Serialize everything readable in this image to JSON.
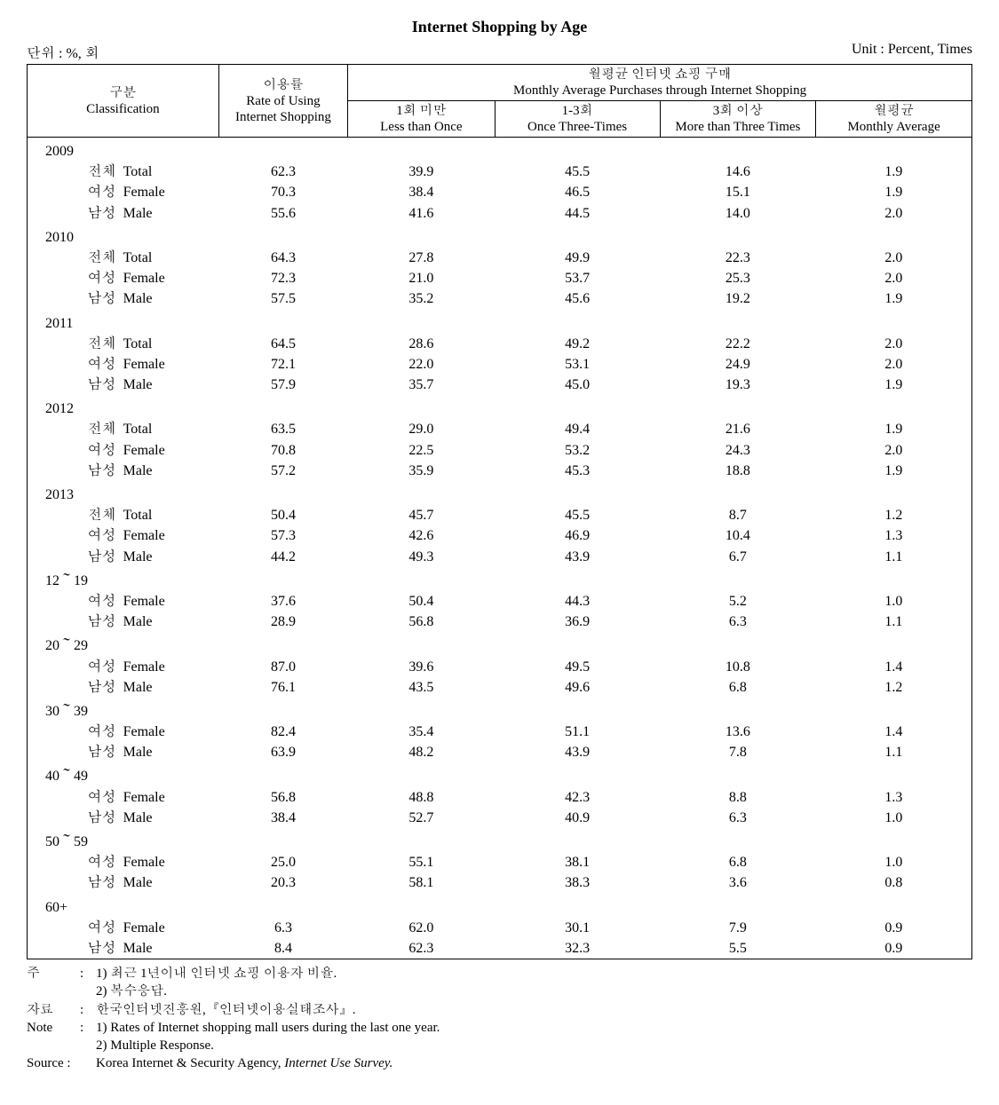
{
  "title": "Internet Shopping by Age",
  "unit_left": "단위 : %, 회",
  "unit_right": "Unit : Percent, Times",
  "header": {
    "classification_ko": "구분",
    "classification_en": "Classification",
    "rate_ko": "이용률",
    "rate_en": "Rate of Using Internet Shopping",
    "monthly_ko": "월평균 인터넷 쇼핑 구매",
    "monthly_en": "Monthly Average Purchases through Internet Shopping",
    "m1_ko": "1회 미만",
    "m1_en": "Less than Once",
    "m2_ko": "1-3회",
    "m2_en": "Once Three-Times",
    "m3_ko": "3회 이상",
    "m3_en": "More than Three Times",
    "m4_ko": "월평균",
    "m4_en": "Monthly Average"
  },
  "groups": [
    {
      "year": "2009",
      "rows": [
        {
          "ko": "전체",
          "en": "Total",
          "rate": "62.3",
          "m1": "39.9",
          "m2": "45.5",
          "m3": "14.6",
          "m4": "1.9"
        },
        {
          "ko": "여성",
          "en": "Female",
          "rate": "70.3",
          "m1": "38.4",
          "m2": "46.5",
          "m3": "15.1",
          "m4": "1.9"
        },
        {
          "ko": "남성",
          "en": "Male",
          "rate": "55.6",
          "m1": "41.6",
          "m2": "44.5",
          "m3": "14.0",
          "m4": "2.0"
        }
      ]
    },
    {
      "year": "2010",
      "rows": [
        {
          "ko": "전체",
          "en": "Total",
          "rate": "64.3",
          "m1": "27.8",
          "m2": "49.9",
          "m3": "22.3",
          "m4": "2.0"
        },
        {
          "ko": "여성",
          "en": "Female",
          "rate": "72.3",
          "m1": "21.0",
          "m2": "53.7",
          "m3": "25.3",
          "m4": "2.0"
        },
        {
          "ko": "남성",
          "en": "Male",
          "rate": "57.5",
          "m1": "35.2",
          "m2": "45.6",
          "m3": "19.2",
          "m4": "1.9"
        }
      ]
    },
    {
      "year": "2011",
      "rows": [
        {
          "ko": "전체",
          "en": "Total",
          "rate": "64.5",
          "m1": "28.6",
          "m2": "49.2",
          "m3": "22.2",
          "m4": "2.0"
        },
        {
          "ko": "여성",
          "en": "Female",
          "rate": "72.1",
          "m1": "22.0",
          "m2": "53.1",
          "m3": "24.9",
          "m4": "2.0"
        },
        {
          "ko": "남성",
          "en": "Male",
          "rate": "57.9",
          "m1": "35.7",
          "m2": "45.0",
          "m3": "19.3",
          "m4": "1.9"
        }
      ]
    },
    {
      "year": "2012",
      "rows": [
        {
          "ko": "전체",
          "en": "Total",
          "rate": "63.5",
          "m1": "29.0",
          "m2": "49.4",
          "m3": "21.6",
          "m4": "1.9"
        },
        {
          "ko": "여성",
          "en": "Female",
          "rate": "70.8",
          "m1": "22.5",
          "m2": "53.2",
          "m3": "24.3",
          "m4": "2.0"
        },
        {
          "ko": "남성",
          "en": "Male",
          "rate": "57.2",
          "m1": "35.9",
          "m2": "45.3",
          "m3": "18.8",
          "m4": "1.9"
        }
      ]
    },
    {
      "year": "2013",
      "rows": [
        {
          "ko": "전체",
          "en": "Total",
          "rate": "50.4",
          "m1": "45.7",
          "m2": "45.5",
          "m3": "8.7",
          "m4": "1.2"
        },
        {
          "ko": "여성",
          "en": "Female",
          "rate": "57.3",
          "m1": "42.6",
          "m2": "46.9",
          "m3": "10.4",
          "m4": "1.3"
        },
        {
          "ko": "남성",
          "en": "Male",
          "rate": "44.2",
          "m1": "49.3",
          "m2": "43.9",
          "m3": "6.7",
          "m4": "1.1"
        }
      ]
    },
    {
      "year": "12～19",
      "rows": [
        {
          "ko": "여성",
          "en": "Female",
          "rate": "37.6",
          "m1": "50.4",
          "m2": "44.3",
          "m3": "5.2",
          "m4": "1.0"
        },
        {
          "ko": "남성",
          "en": "Male",
          "rate": "28.9",
          "m1": "56.8",
          "m2": "36.9",
          "m3": "6.3",
          "m4": "1.1"
        }
      ]
    },
    {
      "year": "20～29",
      "rows": [
        {
          "ko": "여성",
          "en": "Female",
          "rate": "87.0",
          "m1": "39.6",
          "m2": "49.5",
          "m3": "10.8",
          "m4": "1.4"
        },
        {
          "ko": "남성",
          "en": "Male",
          "rate": "76.1",
          "m1": "43.5",
          "m2": "49.6",
          "m3": "6.8",
          "m4": "1.2"
        }
      ]
    },
    {
      "year": "30～39",
      "rows": [
        {
          "ko": "여성",
          "en": "Female",
          "rate": "82.4",
          "m1": "35.4",
          "m2": "51.1",
          "m3": "13.6",
          "m4": "1.4"
        },
        {
          "ko": "남성",
          "en": "Male",
          "rate": "63.9",
          "m1": "48.2",
          "m2": "43.9",
          "m3": "7.8",
          "m4": "1.1"
        }
      ]
    },
    {
      "year": "40～49",
      "rows": [
        {
          "ko": "여성",
          "en": "Female",
          "rate": "56.8",
          "m1": "48.8",
          "m2": "42.3",
          "m3": "8.8",
          "m4": "1.3"
        },
        {
          "ko": "남성",
          "en": "Male",
          "rate": "38.4",
          "m1": "52.7",
          "m2": "40.9",
          "m3": "6.3",
          "m4": "1.0"
        }
      ]
    },
    {
      "year": "50～59",
      "rows": [
        {
          "ko": "여성",
          "en": "Female",
          "rate": "25.0",
          "m1": "55.1",
          "m2": "38.1",
          "m3": "6.8",
          "m4": "1.0"
        },
        {
          "ko": "남성",
          "en": "Male",
          "rate": "20.3",
          "m1": "58.1",
          "m2": "38.3",
          "m3": "3.6",
          "m4": "0.8"
        }
      ]
    },
    {
      "year": "60+",
      "rows": [
        {
          "ko": "여성",
          "en": "Female",
          "rate": "6.3",
          "m1": "62.0",
          "m2": "30.1",
          "m3": "7.9",
          "m4": "0.9"
        },
        {
          "ko": "남성",
          "en": "Male",
          "rate": "8.4",
          "m1": "62.3",
          "m2": "32.3",
          "m3": "5.5",
          "m4": "0.9"
        }
      ]
    }
  ],
  "notes": {
    "ju_label": "주",
    "ju_lines": [
      "1) 최근 1년이내 인터넷 쇼핑 이용자 비율.",
      "2) 복수응답."
    ],
    "jaryo_label": "자료",
    "jaryo_line": "한국인터넷진흥원,『인터넷이용실태조사』.",
    "note_label": "Note",
    "note_lines": [
      "1) Rates of Internet shopping mall users during the last one year.",
      "2) Multiple Response."
    ],
    "source_label": "Source :",
    "source_prefix": "Korea Internet & Security Agency, ",
    "source_italic": "Internet Use Survey.",
    "colon": ":"
  }
}
